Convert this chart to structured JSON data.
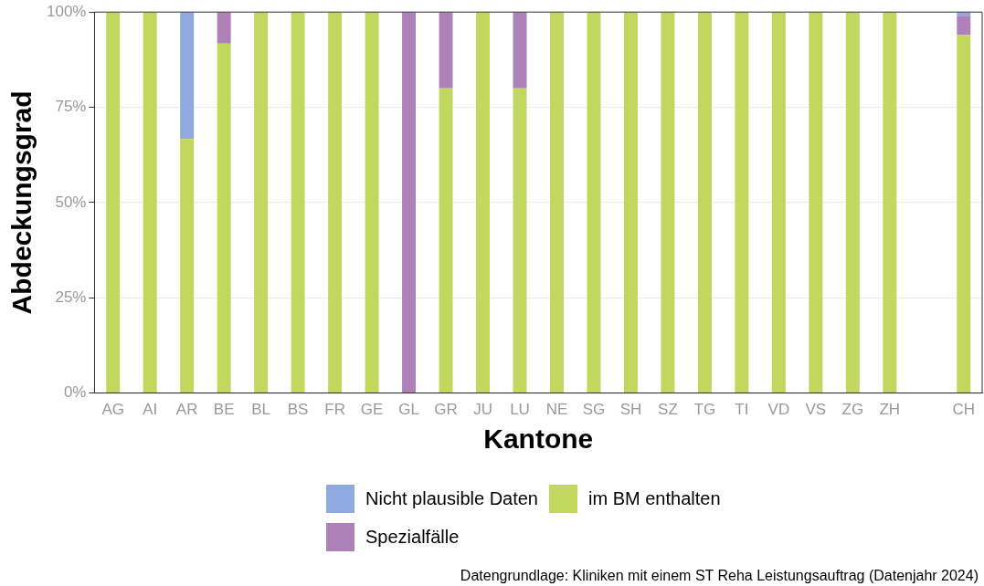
{
  "chart_data": {
    "type": "bar",
    "stacked": true,
    "xlabel": "Kantone",
    "ylabel": "Abdeckungsgrad",
    "categories": [
      "AG",
      "AI",
      "AR",
      "BE",
      "BL",
      "BS",
      "FR",
      "GE",
      "GL",
      "GR",
      "JU",
      "LU",
      "NE",
      "SG",
      "SH",
      "SZ",
      "TG",
      "TI",
      "VD",
      "VS",
      "ZG",
      "ZH",
      null,
      "CH"
    ],
    "series": [
      {
        "name": "im BM enthalten",
        "color": "#c2d75d",
        "values": [
          100,
          100,
          66.7,
          91.7,
          100,
          100,
          100,
          100,
          0,
          80,
          100,
          80,
          100,
          100,
          100,
          100,
          100,
          100,
          100,
          100,
          100,
          100,
          null,
          94
        ]
      },
      {
        "name": "Spezialfälle",
        "color": "#ae82b9",
        "values": [
          0,
          0,
          0,
          8.3,
          0,
          0,
          0,
          0,
          100,
          20,
          0,
          20,
          0,
          0,
          0,
          0,
          0,
          0,
          0,
          0,
          0,
          0,
          null,
          5
        ]
      },
      {
        "name": "Nicht plausible Daten",
        "color": "#8eaae0",
        "values": [
          0,
          0,
          33.3,
          0,
          0,
          0,
          0,
          0,
          0,
          0,
          0,
          0,
          0,
          0,
          0,
          0,
          0,
          0,
          0,
          0,
          0,
          0,
          null,
          1
        ]
      }
    ],
    "ylim": [
      0,
      100
    ],
    "yticks": [
      {
        "value": 0,
        "label": "0%"
      },
      {
        "value": 25,
        "label": "25%"
      },
      {
        "value": 50,
        "label": "50%"
      },
      {
        "value": 75,
        "label": "75%"
      },
      {
        "value": 100,
        "label": "100%"
      }
    ],
    "grid": "y",
    "legend": "bottom",
    "annotations": [
      "Datengrundlage: Kliniken mit einem ST Reha Leistungsauftrag (Datenjahr 2024)"
    ]
  }
}
